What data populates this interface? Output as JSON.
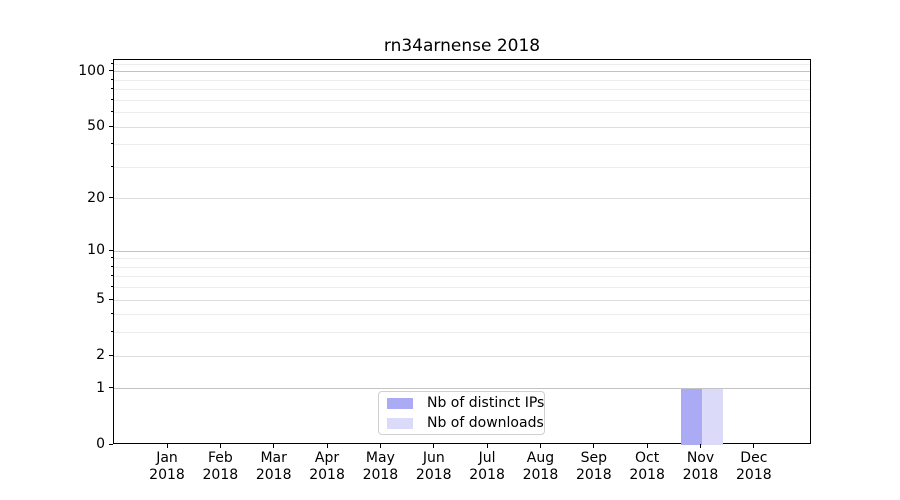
{
  "chart_data": {
    "type": "bar",
    "title": "rn34arnense 2018",
    "categories": [
      "Jan",
      "Feb",
      "Mar",
      "Apr",
      "May",
      "Jun",
      "Jul",
      "Aug",
      "Sep",
      "Oct",
      "Nov",
      "Dec"
    ],
    "x_tick_second_line": "2018",
    "series": [
      {
        "name": "Nb of distinct IPs",
        "color": "#aaaaf5",
        "values": [
          0,
          0,
          0,
          0,
          0,
          0,
          0,
          0,
          0,
          0,
          1,
          0
        ]
      },
      {
        "name": "Nb of downloads",
        "color": "#dbdbf9",
        "values": [
          0,
          0,
          0,
          0,
          0,
          0,
          0,
          0,
          0,
          0,
          1,
          0
        ]
      }
    ],
    "y_scale": "log1p",
    "ylim": [
      0,
      116
    ],
    "y_ticks": [
      0,
      1,
      2,
      5,
      10,
      20,
      50,
      100
    ],
    "y_decade_ticks": [
      1,
      10,
      100
    ],
    "y_minor_gridlines": [
      3,
      4,
      6,
      7,
      8,
      9,
      30,
      40,
      60,
      70,
      80,
      90,
      110
    ],
    "grid": true,
    "legend_position": "lower center",
    "colors": {
      "grid_major": "#c3c3c3",
      "grid_mid": "#dedede",
      "grid_minor": "#ececec",
      "spine": "#000000",
      "background": "#ffffff"
    }
  }
}
